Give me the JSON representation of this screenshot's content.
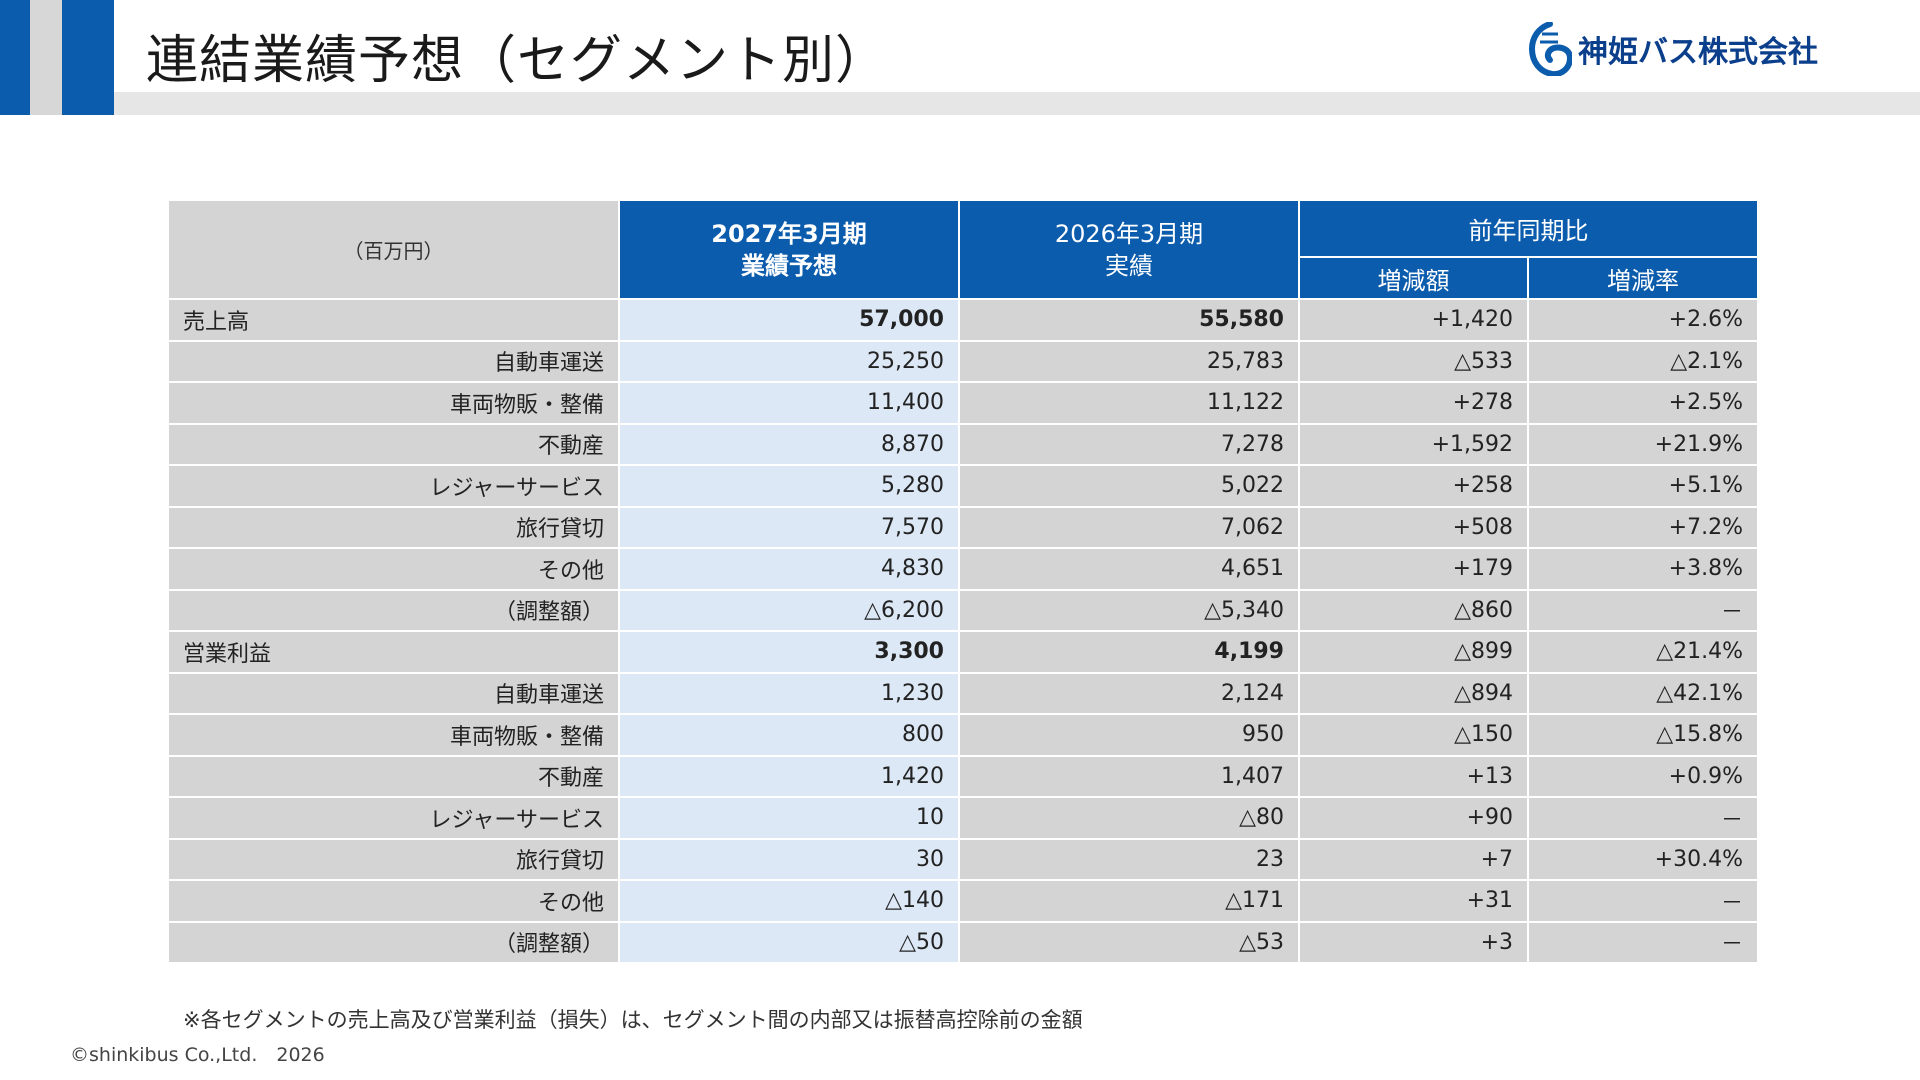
{
  "page": {
    "title": "連結業績予想（セグメント別）",
    "company": "神姫バス株式会社",
    "note": "※各セグメントの売上高及び営業利益（損失）は、セグメント間の内部又は振替高控除前の金額",
    "copyright": "©shinkibus Co.,Ltd.　2026"
  },
  "colors": {
    "accent": "#0b5cad",
    "cell_gray": "#d4d4d4",
    "forecast_cell": "#dce8f5"
  },
  "table": {
    "unit": "（百万円）",
    "col_forecast_line1": "2027年3月期",
    "col_forecast_line2": "業績予想",
    "col_actual_line1": "2026年3月期",
    "col_actual_line2": "実績",
    "col_yoy": "前年同期比",
    "col_diff": "増減額",
    "col_rate": "増減率",
    "rows": [
      {
        "label": "売上高",
        "forecast": "57,000",
        "actual": "55,580",
        "diff": "+1,420",
        "rate": "+2.6%"
      },
      {
        "label": "自動車運送",
        "forecast": "25,250",
        "actual": "25,783",
        "diff": "△533",
        "rate": "△2.1%"
      },
      {
        "label": "車両物販・整備",
        "forecast": "11,400",
        "actual": "11,122",
        "diff": "+278",
        "rate": "+2.5%"
      },
      {
        "label": "不動産",
        "forecast": "8,870",
        "actual": "7,278",
        "diff": "+1,592",
        "rate": "+21.9%"
      },
      {
        "label": "レジャーサービス",
        "forecast": "5,280",
        "actual": "5,022",
        "diff": "+258",
        "rate": "+5.1%"
      },
      {
        "label": "旅行貸切",
        "forecast": "7,570",
        "actual": "7,062",
        "diff": "+508",
        "rate": "+7.2%"
      },
      {
        "label": "その他",
        "forecast": "4,830",
        "actual": "4,651",
        "diff": "+179",
        "rate": "+3.8%"
      },
      {
        "label": "（調整額）",
        "forecast": "△6,200",
        "actual": "△5,340",
        "diff": "△860",
        "rate": "－"
      },
      {
        "label": "営業利益",
        "forecast": "3,300",
        "actual": "4,199",
        "diff": "△899",
        "rate": "△21.4%"
      },
      {
        "label": "自動車運送",
        "forecast": "1,230",
        "actual": "2,124",
        "diff": "△894",
        "rate": "△42.1%"
      },
      {
        "label": "車両物販・整備",
        "forecast": "800",
        "actual": "950",
        "diff": "△150",
        "rate": "△15.8%"
      },
      {
        "label": "不動産",
        "forecast": "1,420",
        "actual": "1,407",
        "diff": "+13",
        "rate": "+0.9%"
      },
      {
        "label": "レジャーサービス",
        "forecast": "10",
        "actual": "△80",
        "diff": "+90",
        "rate": "－"
      },
      {
        "label": "旅行貸切",
        "forecast": "30",
        "actual": "23",
        "diff": "+7",
        "rate": "+30.4%"
      },
      {
        "label": "その他",
        "forecast": "△140",
        "actual": "△171",
        "diff": "+31",
        "rate": "－"
      },
      {
        "label": "（調整額）",
        "forecast": "△50",
        "actual": "△53",
        "diff": "+3",
        "rate": "－"
      }
    ]
  }
}
